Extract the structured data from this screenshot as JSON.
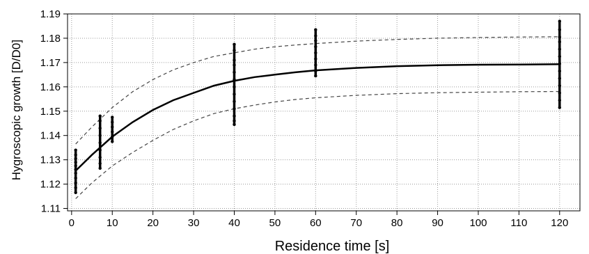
{
  "chart_data": {
    "type": "scatter",
    "title": "",
    "xlabel": "Residence time [s]",
    "ylabel": "Hygroscopic growth [D/D0]",
    "xlim": [
      -1,
      125
    ],
    "ylim": [
      1.109,
      1.19
    ],
    "xticks": [
      0,
      10,
      20,
      30,
      40,
      50,
      60,
      70,
      80,
      90,
      100,
      110,
      120
    ],
    "xtick_labels": [
      "0",
      "10",
      "20",
      "30",
      "40",
      "50",
      "60",
      "70",
      "80",
      "90",
      "100",
      "110",
      "120"
    ],
    "yticks": [
      1.11,
      1.12,
      1.13,
      1.14,
      1.15,
      1.16,
      1.17,
      1.18,
      1.19
    ],
    "ytick_labels": [
      "1.11",
      "1.12",
      "1.13",
      "1.14",
      "1.15",
      "1.16",
      "1.17",
      "1.18",
      "1.19"
    ],
    "grid": true,
    "grid_style": "dotted",
    "legend": false,
    "series": [
      {
        "kind": "measured-points",
        "color": "#000000",
        "groups": [
          {
            "x": 1,
            "values": [
              1.1165,
              1.1185,
              1.1205,
              1.1225,
              1.1245,
              1.126,
              1.1275,
              1.129,
              1.1305,
              1.132,
              1.134
            ]
          },
          {
            "x": 7,
            "values": [
              1.1265,
              1.1285,
              1.131,
              1.134,
              1.137,
              1.14,
              1.143,
              1.146,
              1.148
            ]
          },
          {
            "x": 10,
            "values": [
              1.1375,
              1.1395,
              1.1415,
              1.1435,
              1.1455,
              1.1475
            ]
          },
          {
            "x": 40,
            "values": [
              1.1445,
              1.146,
              1.148,
              1.151,
              1.154,
              1.157,
              1.16,
              1.163,
              1.166,
              1.169,
              1.171,
              1.175,
              1.1775
            ]
          },
          {
            "x": 60,
            "values": [
              1.1645,
              1.1665,
              1.169,
              1.1715,
              1.174,
              1.1765,
              1.179,
              1.181,
              1.1835
            ]
          },
          {
            "x": 120,
            "values": [
              1.1515,
              1.1545,
              1.1575,
              1.1605,
              1.1635,
              1.1665,
              1.1695,
              1.1725,
              1.1755,
              1.1785,
              1.1805,
              1.1835,
              1.187
            ]
          }
        ]
      },
      {
        "kind": "fit-line",
        "style": "solid",
        "color": "#000000",
        "x": [
          1,
          5,
          10,
          15,
          20,
          25,
          30,
          35,
          40,
          45,
          50,
          55,
          60,
          70,
          80,
          90,
          100,
          110,
          120
        ],
        "y": [
          1.1255,
          1.132,
          1.1395,
          1.1455,
          1.1505,
          1.1545,
          1.1575,
          1.1605,
          1.1625,
          1.164,
          1.165,
          1.166,
          1.1668,
          1.1678,
          1.1685,
          1.1689,
          1.1691,
          1.1692,
          1.1693
        ]
      },
      {
        "kind": "upper-bound",
        "style": "dashed",
        "color": "#444444",
        "x": [
          1,
          5,
          10,
          15,
          20,
          25,
          30,
          35,
          40,
          45,
          50,
          55,
          60,
          70,
          80,
          90,
          100,
          110,
          120
        ],
        "y": [
          1.1365,
          1.1435,
          1.1515,
          1.158,
          1.163,
          1.167,
          1.17,
          1.1725,
          1.174,
          1.1755,
          1.1765,
          1.1772,
          1.1778,
          1.1788,
          1.1795,
          1.18,
          1.1803,
          1.1805,
          1.1806
        ]
      },
      {
        "kind": "lower-bound",
        "style": "dashed",
        "color": "#444444",
        "x": [
          1,
          5,
          10,
          15,
          20,
          25,
          30,
          35,
          40,
          45,
          50,
          55,
          60,
          70,
          80,
          90,
          100,
          110,
          120
        ],
        "y": [
          1.114,
          1.1205,
          1.1275,
          1.133,
          1.138,
          1.1425,
          1.146,
          1.149,
          1.151,
          1.1525,
          1.1538,
          1.1548,
          1.1555,
          1.1565,
          1.1572,
          1.1576,
          1.1578,
          1.158,
          1.1581
        ]
      }
    ]
  }
}
